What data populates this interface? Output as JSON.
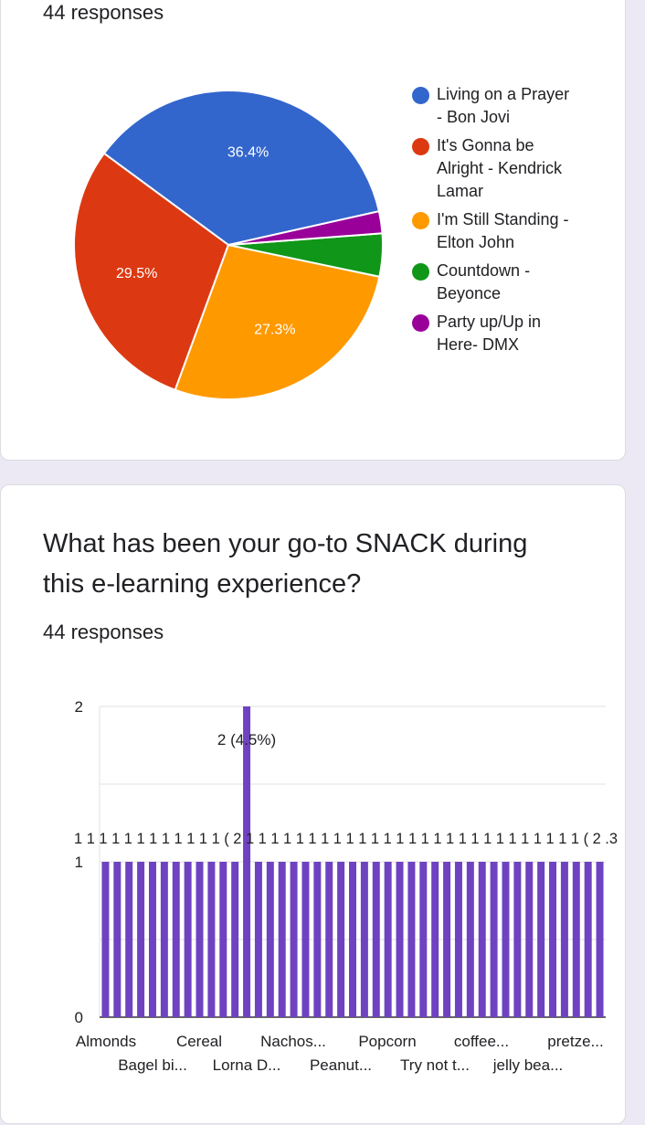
{
  "card1": {
    "responses": "44 responses"
  },
  "card2": {
    "question": "What has been your go-to SNACK during this e-learning experience?",
    "responses": "44 responses"
  },
  "colors": {
    "bar": "#6f42c1",
    "grid": "#e0e0e0",
    "axis": "#333333"
  },
  "chart_data": [
    {
      "type": "pie",
      "slices": [
        {
          "label": "Living on a Prayer - Bon Jovi",
          "value": 36.4,
          "display": "36.4%",
          "color": "#3366cc"
        },
        {
          "label": "It's Gonna be Alright - Kendrick Lamar",
          "value": 29.5,
          "display": "29.5%",
          "color": "#dc3912"
        },
        {
          "label": "I'm Still Standing - Elton John",
          "value": 27.3,
          "display": "27.3%",
          "color": "#ff9900"
        },
        {
          "label": "Countdown - Beyonce",
          "value": 4.5,
          "display": "",
          "color": "#109618"
        },
        {
          "label": "Party up/Up in Here- DMX",
          "value": 2.3,
          "display": "",
          "color": "#990099"
        }
      ],
      "legend_lines": [
        [
          "Living on a Prayer",
          "- Bon Jovi"
        ],
        [
          "It's Gonna be",
          "Alright - Kendrick",
          "Lamar"
        ],
        [
          "I'm Still Standing -",
          "Elton John"
        ],
        [
          "Countdown -",
          "Beyonce"
        ],
        [
          "Party up/Up in",
          "Here- DMX"
        ]
      ],
      "legend_position": "right"
    },
    {
      "type": "bar",
      "bar_count": 43,
      "values": [
        1,
        1,
        1,
        1,
        1,
        1,
        1,
        1,
        1,
        1,
        1,
        1,
        2,
        1,
        1,
        1,
        1,
        1,
        1,
        1,
        1,
        1,
        1,
        1,
        1,
        1,
        1,
        1,
        1,
        1,
        1,
        1,
        1,
        1,
        1,
        1,
        1,
        1,
        1,
        1,
        1,
        1,
        1
      ],
      "peak_label": "2 (4.5%)",
      "data_label_row": "1 1 1 1 1 1 1 1 1 1 1 1 ( 2 1 1 1 1 1 1 1 1 1 1 1 1 1 1 1 1 1 1 1 1 1 1 1 1 1 1 1 ( 2 .3",
      "category_labels_row1": [
        "Almonds",
        "Cereal",
        "Nachos...",
        "Popcorn",
        "coffee...",
        "pretze..."
      ],
      "category_labels_row2": [
        "Bagel bi...",
        "Lorna D...",
        "Peanut...",
        "Try not t...",
        "jelly bea..."
      ],
      "yticks": [
        "0",
        "1",
        "2"
      ],
      "ylim": [
        0,
        2
      ],
      "grid": true
    }
  ]
}
